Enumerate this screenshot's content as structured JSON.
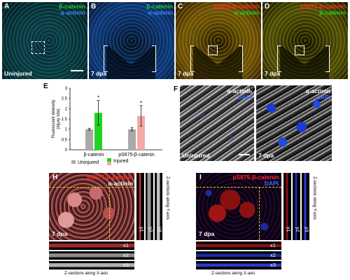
{
  "panels": {
    "A": {
      "letter": "A",
      "labels": [
        "β-catenin",
        "α-actinin"
      ],
      "corner": "Uninjured"
    },
    "B": {
      "letter": "B",
      "labels": [
        "β-catenin",
        "α-actinin"
      ],
      "corner": "7 dpa"
    },
    "C": {
      "letter": "C",
      "labels": [
        "pS675-β-catenin",
        "α-actinin"
      ],
      "corner": "7 dpa"
    },
    "D": {
      "letter": "D",
      "labels": [
        "pS675-β-catenin",
        "β-catenin"
      ],
      "corner": "7 dpa"
    },
    "E": {
      "letter": "E"
    },
    "F": {
      "letter": "F",
      "labels": [
        "α-actinin",
        "DAPI"
      ],
      "corner": "Uninjured"
    },
    "G": {
      "letter": "G",
      "labels": [
        "α-actinin",
        "DAPI"
      ],
      "corner": "7 dpa"
    },
    "H": {
      "letter": "H",
      "labels": [
        "pS675-β-catenin",
        "α-actinin"
      ],
      "corner": "7 dpa",
      "ystrips": [
        "y1",
        "y2",
        "y3"
      ],
      "xstrips": [
        "x1",
        "x2",
        "x3"
      ],
      "ycaption": "Z-sections along Y-axis",
      "xcaption": "Z-sections along X-axis"
    },
    "I": {
      "letter": "I",
      "labels": [
        "pS675-β-catenin",
        "DAPI"
      ],
      "corner": "7 dpa",
      "ystrips": [
        "y1",
        "y2",
        "y3"
      ],
      "xstrips": [
        "x1",
        "x2",
        "x3"
      ],
      "ycaption": "Z-sections along Y-axis",
      "xcaption": "Z-sections along X-axis"
    }
  },
  "colors": {
    "green": "#22d322",
    "red": "#ff2a2a",
    "blue": "#3b6cff",
    "white": "#ffffff",
    "uninjured": "#a9a9a9",
    "injured_beta": "#22d322",
    "injured_ps": "#f4a9a9"
  },
  "chart_data": {
    "type": "bar",
    "ylabel": "Fluorescent intensity\n(injury site)",
    "ylim": [
      0,
      3
    ],
    "yticks": [
      "0",
      "0.5",
      "1",
      "1.5",
      "2",
      "2.5",
      "3"
    ],
    "categories": [
      "β-catenin",
      "pS675-β-catenin"
    ],
    "series": [
      {
        "name": "Uninjured",
        "values": [
          1.0,
          1.0
        ],
        "errors": [
          0.05,
          0.08
        ]
      },
      {
        "name": "Injured",
        "values": [
          1.8,
          1.65
        ],
        "errors": [
          0.6,
          0.5
        ]
      }
    ],
    "significance": [
      "*",
      "*"
    ],
    "legend": [
      "Uninjured",
      "Injured"
    ]
  }
}
